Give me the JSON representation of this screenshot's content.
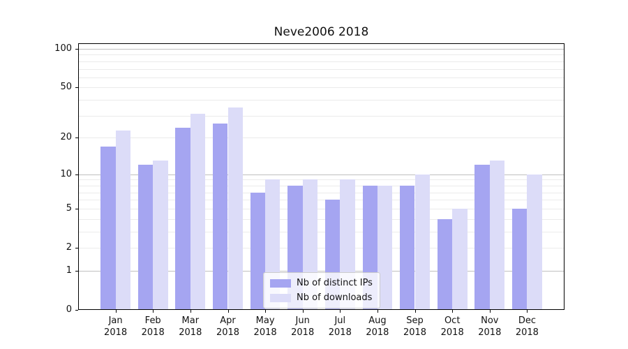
{
  "chart_data": {
    "type": "bar",
    "title": "Neve2006 2018",
    "categories": [
      "Jan",
      "Feb",
      "Mar",
      "Apr",
      "May",
      "Jun",
      "Jul",
      "Aug",
      "Sep",
      "Oct",
      "Nov",
      "Dec"
    ],
    "category_year": "2018",
    "series": [
      {
        "name": "Nb of distinct IPs",
        "color": "#a5a5f1",
        "values": [
          17,
          12,
          24,
          26,
          7,
          8,
          6,
          8,
          8,
          4,
          12,
          5
        ]
      },
      {
        "name": "Nb of downloads",
        "color": "#dcdcf8",
        "values": [
          23,
          13,
          31,
          35,
          9,
          9,
          9,
          8,
          10,
          5,
          13,
          10
        ]
      }
    ],
    "yscale": "symlog",
    "ylim": [
      0,
      110
    ],
    "yticks": [
      100,
      50,
      20,
      10,
      5,
      2,
      1,
      0
    ],
    "gridlines_major": [
      1,
      10,
      100
    ],
    "gridlines_minor": [
      2,
      3,
      4,
      5,
      6,
      7,
      8,
      9,
      20,
      30,
      40,
      50,
      60,
      70,
      80,
      90
    ],
    "legend": {
      "position": "lower center"
    },
    "colors": {
      "spine": "#000000",
      "grid_major": "#c0c0c0",
      "grid_minor": "#ebebeb",
      "text": "#111111"
    }
  }
}
